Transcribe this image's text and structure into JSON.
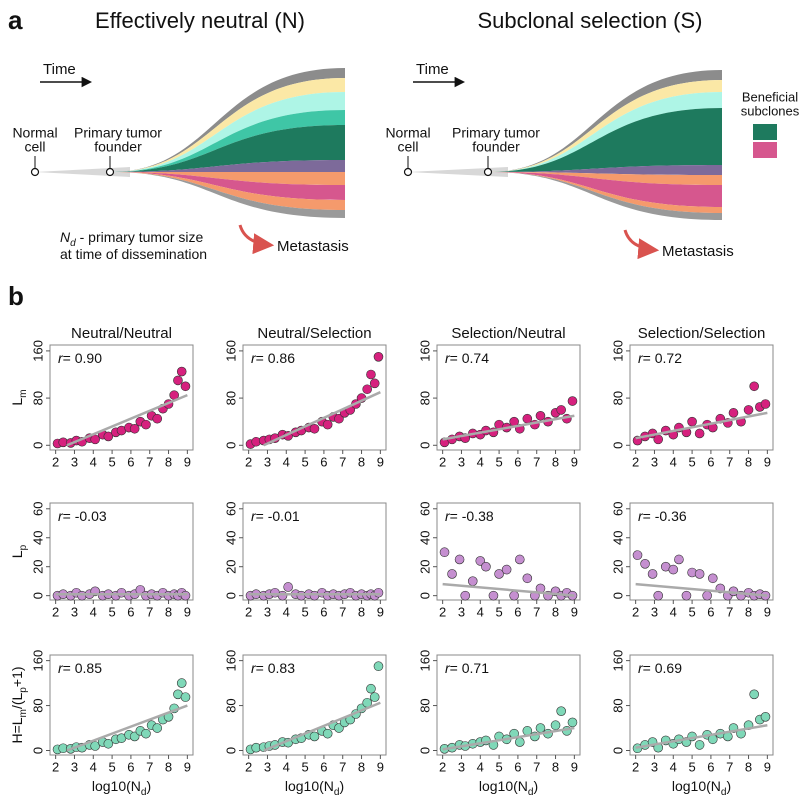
{
  "figure": {
    "panel_a_label": "a",
    "panel_b_label": "b",
    "diagrams": [
      {
        "title": "Effectively neutral (N)",
        "time": "Time",
        "normal_cell": [
          "Normal",
          "cell"
        ],
        "founder": [
          "Primary tumor",
          "founder"
        ],
        "metastasis": "Metastasis",
        "annotation": [
          [
            {
              "text": "N",
              "italic": true
            },
            {
              "text": "d",
              "sub": true,
              "italic": true
            },
            {
              "text": " - primary tumor size"
            }
          ],
          [
            {
              "text": "at time of dissemination"
            }
          ]
        ]
      },
      {
        "title": "Subclonal selection (S)",
        "time": "Time",
        "normal_cell": [
          "Normal",
          "cell"
        ],
        "founder": [
          "Primary tumor",
          "founder"
        ],
        "metastasis": "Metastasis",
        "legend_title": [
          "Beneficial",
          "subclones"
        ]
      }
    ],
    "columns": [
      "Neutral/Neutral",
      "Neutral/Selection",
      "Selection/Neutral",
      "Selection/Selection"
    ],
    "row_labels": [
      [
        {
          "text": "L"
        },
        {
          "text": "m",
          "sub": true
        }
      ],
      [
        {
          "text": "L"
        },
        {
          "text": "p",
          "sub": true
        }
      ],
      [
        {
          "text": "H=L"
        },
        {
          "text": "m",
          "sub": true
        },
        {
          "text": "/(L"
        },
        {
          "text": "p",
          "sub": true
        },
        {
          "text": "+1)"
        }
      ]
    ],
    "x_label": [
      {
        "text": "log10(N"
      },
      {
        "text": "d",
        "sub": true
      },
      {
        "text": ")"
      }
    ]
  },
  "chart_data": [
    {
      "type": "scatter",
      "r_symbol": "r",
      "r_text": "= 0.90",
      "color": "#d6217e",
      "x": [
        2.1,
        2.4,
        2.8,
        3.1,
        3.4,
        3.8,
        4.1,
        4.5,
        4.8,
        5.2,
        5.5,
        5.9,
        6.2,
        6.5,
        6.8,
        7.1,
        7.4,
        7.7,
        8.0,
        8.3,
        8.5,
        8.7,
        8.9
      ],
      "y": [
        3,
        5,
        4,
        8,
        6,
        12,
        10,
        18,
        15,
        22,
        25,
        30,
        28,
        40,
        35,
        50,
        45,
        62,
        70,
        85,
        110,
        125,
        100
      ],
      "fit": {
        "x": [
          2.6,
          9
        ],
        "y": [
          0,
          85
        ],
        "color": "#aaaaaa"
      },
      "xlim": [
        1.7,
        9.3
      ],
      "ylim": [
        -8,
        170
      ],
      "xticks": [
        2,
        3,
        4,
        5,
        6,
        7,
        8,
        9
      ],
      "yticks": [
        0,
        80,
        160
      ]
    },
    {
      "type": "scatter",
      "r_symbol": "r",
      "r_text": "= 0.86",
      "color": "#d6217e",
      "x": [
        2.1,
        2.4,
        2.8,
        3.1,
        3.4,
        3.8,
        4.1,
        4.5,
        4.8,
        5.2,
        5.5,
        5.9,
        6.2,
        6.5,
        6.8,
        7.1,
        7.4,
        7.7,
        8.0,
        8.3,
        8.5,
        8.7,
        8.9
      ],
      "y": [
        2,
        6,
        8,
        10,
        12,
        18,
        16,
        22,
        25,
        30,
        28,
        40,
        35,
        48,
        45,
        55,
        60,
        70,
        80,
        95,
        120,
        105,
        150
      ],
      "fit": {
        "x": [
          2.8,
          9
        ],
        "y": [
          0,
          90
        ],
        "color": "#aaaaaa"
      },
      "xlim": [
        1.7,
        9.3
      ],
      "ylim": [
        -8,
        170
      ],
      "xticks": [
        2,
        3,
        4,
        5,
        6,
        7,
        8,
        9
      ],
      "yticks": [
        0,
        80,
        160
      ]
    },
    {
      "type": "scatter",
      "r_symbol": "r",
      "r_text": "= 0.74",
      "color": "#d6217e",
      "x": [
        2.1,
        2.5,
        2.9,
        3.2,
        3.6,
        4.0,
        4.3,
        4.7,
        5.0,
        5.4,
        5.8,
        6.1,
        6.5,
        6.9,
        7.2,
        7.6,
        8.0,
        8.3,
        8.6,
        8.9
      ],
      "y": [
        5,
        10,
        15,
        12,
        20,
        18,
        25,
        22,
        35,
        30,
        40,
        28,
        45,
        35,
        50,
        40,
        55,
        60,
        45,
        75
      ],
      "fit": {
        "x": [
          2,
          9
        ],
        "y": [
          10,
          50
        ],
        "color": "#aaaaaa"
      },
      "xlim": [
        1.7,
        9.3
      ],
      "ylim": [
        -8,
        170
      ],
      "xticks": [
        2,
        3,
        4,
        5,
        6,
        7,
        8,
        9
      ],
      "yticks": [
        0,
        80,
        160
      ]
    },
    {
      "type": "scatter",
      "r_symbol": "r",
      "r_text": "= 0.72",
      "color": "#d6217e",
      "x": [
        2.1,
        2.5,
        2.9,
        3.2,
        3.6,
        4.0,
        4.3,
        4.7,
        5.0,
        5.4,
        5.8,
        6.1,
        6.5,
        6.9,
        7.2,
        7.6,
        8.0,
        8.3,
        8.6,
        8.9
      ],
      "y": [
        8,
        15,
        20,
        10,
        25,
        18,
        30,
        22,
        40,
        20,
        35,
        30,
        45,
        38,
        55,
        40,
        60,
        100,
        65,
        70
      ],
      "fit": {
        "x": [
          2,
          9
        ],
        "y": [
          12,
          55
        ],
        "color": "#aaaaaa"
      },
      "xlim": [
        1.7,
        9.3
      ],
      "ylim": [
        -8,
        170
      ],
      "xticks": [
        2,
        3,
        4,
        5,
        6,
        7,
        8,
        9
      ],
      "yticks": [
        0,
        80,
        160
      ]
    },
    {
      "type": "scatter",
      "r_symbol": "r",
      "r_text": "= -0.03",
      "color": "#c58fd0",
      "x": [
        2.1,
        2.4,
        2.8,
        3.1,
        3.4,
        3.8,
        4.1,
        4.5,
        4.8,
        5.2,
        5.5,
        5.9,
        6.2,
        6.5,
        6.8,
        7.1,
        7.4,
        7.7,
        8.0,
        8.3,
        8.5,
        8.7,
        8.9
      ],
      "y": [
        0,
        1,
        0,
        2,
        0,
        1,
        3,
        0,
        1,
        0,
        2,
        0,
        1,
        4,
        0,
        1,
        0,
        2,
        0,
        1,
        0,
        2,
        0
      ],
      "fit": {
        "x": [
          2,
          9
        ],
        "y": [
          1,
          1
        ],
        "color": "#aaaaaa"
      },
      "xlim": [
        1.7,
        9.3
      ],
      "ylim": [
        -3,
        64
      ],
      "xticks": [
        2,
        3,
        4,
        5,
        6,
        7,
        8,
        9
      ],
      "yticks": [
        0,
        20,
        40,
        60
      ]
    },
    {
      "type": "scatter",
      "r_symbol": "r",
      "r_text": "= -0.01",
      "color": "#c58fd0",
      "x": [
        2.1,
        2.4,
        2.8,
        3.1,
        3.4,
        3.8,
        4.1,
        4.5,
        4.8,
        5.2,
        5.5,
        5.9,
        6.2,
        6.5,
        6.8,
        7.1,
        7.4,
        7.7,
        8.0,
        8.3,
        8.5,
        8.7,
        8.9
      ],
      "y": [
        0,
        1,
        0,
        1,
        2,
        0,
        6,
        1,
        0,
        1,
        0,
        2,
        0,
        1,
        0,
        1,
        2,
        0,
        1,
        0,
        1,
        0,
        2
      ],
      "fit": {
        "x": [
          2,
          9
        ],
        "y": [
          1,
          1
        ],
        "color": "#aaaaaa"
      },
      "xlim": [
        1.7,
        9.3
      ],
      "ylim": [
        -3,
        64
      ],
      "xticks": [
        2,
        3,
        4,
        5,
        6,
        7,
        8,
        9
      ],
      "yticks": [
        0,
        20,
        40,
        60
      ]
    },
    {
      "type": "scatter",
      "r_symbol": "r",
      "r_text": "= -0.38",
      "color": "#c58fd0",
      "x": [
        2.1,
        2.5,
        2.9,
        3.2,
        3.6,
        4.0,
        4.3,
        4.7,
        5.0,
        5.4,
        5.8,
        6.1,
        6.5,
        6.9,
        7.2,
        7.6,
        8.0,
        8.3,
        8.6,
        8.9
      ],
      "y": [
        30,
        15,
        25,
        0,
        10,
        24,
        20,
        0,
        15,
        18,
        0,
        25,
        12,
        0,
        5,
        0,
        3,
        0,
        2,
        0
      ],
      "fit": {
        "x": [
          2,
          9
        ],
        "y": [
          8,
          0
        ],
        "color": "#aaaaaa"
      },
      "xlim": [
        1.7,
        9.3
      ],
      "ylim": [
        -3,
        64
      ],
      "xticks": [
        2,
        3,
        4,
        5,
        6,
        7,
        8,
        9
      ],
      "yticks": [
        0,
        20,
        40,
        60
      ]
    },
    {
      "type": "scatter",
      "r_symbol": "r",
      "r_text": "= -0.36",
      "color": "#c58fd0",
      "x": [
        2.1,
        2.5,
        2.9,
        3.2,
        3.6,
        4.0,
        4.3,
        4.7,
        5.0,
        5.4,
        5.8,
        6.1,
        6.5,
        6.9,
        7.2,
        7.6,
        8.0,
        8.3,
        8.6,
        8.9
      ],
      "y": [
        28,
        22,
        15,
        0,
        20,
        18,
        25,
        0,
        16,
        15,
        0,
        12,
        5,
        0,
        3,
        0,
        2,
        0,
        1,
        0
      ],
      "fit": {
        "x": [
          2,
          9
        ],
        "y": [
          8,
          0
        ],
        "color": "#aaaaaa"
      },
      "xlim": [
        1.7,
        9.3
      ],
      "ylim": [
        -3,
        64
      ],
      "xticks": [
        2,
        3,
        4,
        5,
        6,
        7,
        8,
        9
      ],
      "yticks": [
        0,
        20,
        40,
        60
      ]
    },
    {
      "type": "scatter",
      "r_symbol": "r",
      "r_text": "= 0.85",
      "color": "#7fd8b8",
      "x": [
        2.1,
        2.4,
        2.8,
        3.1,
        3.4,
        3.8,
        4.1,
        4.5,
        4.8,
        5.2,
        5.5,
        5.9,
        6.2,
        6.5,
        6.8,
        7.1,
        7.4,
        7.7,
        8.0,
        8.3,
        8.5,
        8.7,
        8.9
      ],
      "y": [
        2,
        4,
        3,
        6,
        5,
        10,
        8,
        15,
        12,
        20,
        22,
        28,
        25,
        35,
        30,
        45,
        40,
        55,
        60,
        75,
        100,
        120,
        95
      ],
      "fit": {
        "x": [
          2.6,
          9
        ],
        "y": [
          0,
          80
        ],
        "color": "#aaaaaa"
      },
      "xlim": [
        1.7,
        9.3
      ],
      "ylim": [
        -8,
        170
      ],
      "xticks": [
        2,
        3,
        4,
        5,
        6,
        7,
        8,
        9
      ],
      "yticks": [
        0,
        80,
        160
      ]
    },
    {
      "type": "scatter",
      "r_symbol": "r",
      "r_text": "= 0.83",
      "color": "#7fd8b8",
      "x": [
        2.1,
        2.4,
        2.8,
        3.1,
        3.4,
        3.8,
        4.1,
        4.5,
        4.8,
        5.2,
        5.5,
        5.9,
        6.2,
        6.5,
        6.8,
        7.1,
        7.4,
        7.7,
        8.0,
        8.3,
        8.5,
        8.7,
        8.9
      ],
      "y": [
        2,
        5,
        6,
        8,
        10,
        15,
        14,
        20,
        22,
        28,
        25,
        35,
        30,
        45,
        40,
        50,
        55,
        65,
        75,
        85,
        110,
        95,
        150
      ],
      "fit": {
        "x": [
          2.8,
          9
        ],
        "y": [
          0,
          85
        ],
        "color": "#aaaaaa"
      },
      "xlim": [
        1.7,
        9.3
      ],
      "ylim": [
        -8,
        170
      ],
      "xticks": [
        2,
        3,
        4,
        5,
        6,
        7,
        8,
        9
      ],
      "yticks": [
        0,
        80,
        160
      ]
    },
    {
      "type": "scatter",
      "r_symbol": "r",
      "r_text": "= 0.71",
      "color": "#7fd8b8",
      "x": [
        2.1,
        2.5,
        2.9,
        3.2,
        3.6,
        4.0,
        4.3,
        4.7,
        5.0,
        5.4,
        5.8,
        6.1,
        6.5,
        6.9,
        7.2,
        7.6,
        8.0,
        8.3,
        8.6,
        8.9
      ],
      "y": [
        3,
        5,
        10,
        8,
        12,
        15,
        18,
        10,
        25,
        20,
        30,
        15,
        35,
        25,
        40,
        30,
        45,
        70,
        35,
        50
      ],
      "fit": {
        "x": [
          2,
          9
        ],
        "y": [
          2,
          40
        ],
        "color": "#aaaaaa"
      },
      "xlim": [
        1.7,
        9.3
      ],
      "ylim": [
        -8,
        170
      ],
      "xticks": [
        2,
        3,
        4,
        5,
        6,
        7,
        8,
        9
      ],
      "yticks": [
        0,
        80,
        160
      ]
    },
    {
      "type": "scatter",
      "r_symbol": "r",
      "r_text": "= 0.69",
      "color": "#7fd8b8",
      "x": [
        2.1,
        2.5,
        2.9,
        3.2,
        3.6,
        4.0,
        4.3,
        4.7,
        5.0,
        5.4,
        5.8,
        6.1,
        6.5,
        6.9,
        7.2,
        7.6,
        8.0,
        8.3,
        8.6,
        8.9
      ],
      "y": [
        4,
        10,
        15,
        5,
        18,
        12,
        20,
        15,
        25,
        10,
        28,
        20,
        30,
        25,
        40,
        30,
        45,
        100,
        55,
        60
      ],
      "fit": {
        "x": [
          2,
          9
        ],
        "y": [
          5,
          45
        ],
        "color": "#aaaaaa"
      },
      "xlim": [
        1.7,
        9.3
      ],
      "ylim": [
        -8,
        170
      ],
      "xticks": [
        2,
        3,
        4,
        5,
        6,
        7,
        8,
        9
      ],
      "yticks": [
        0,
        80,
        160
      ]
    }
  ]
}
